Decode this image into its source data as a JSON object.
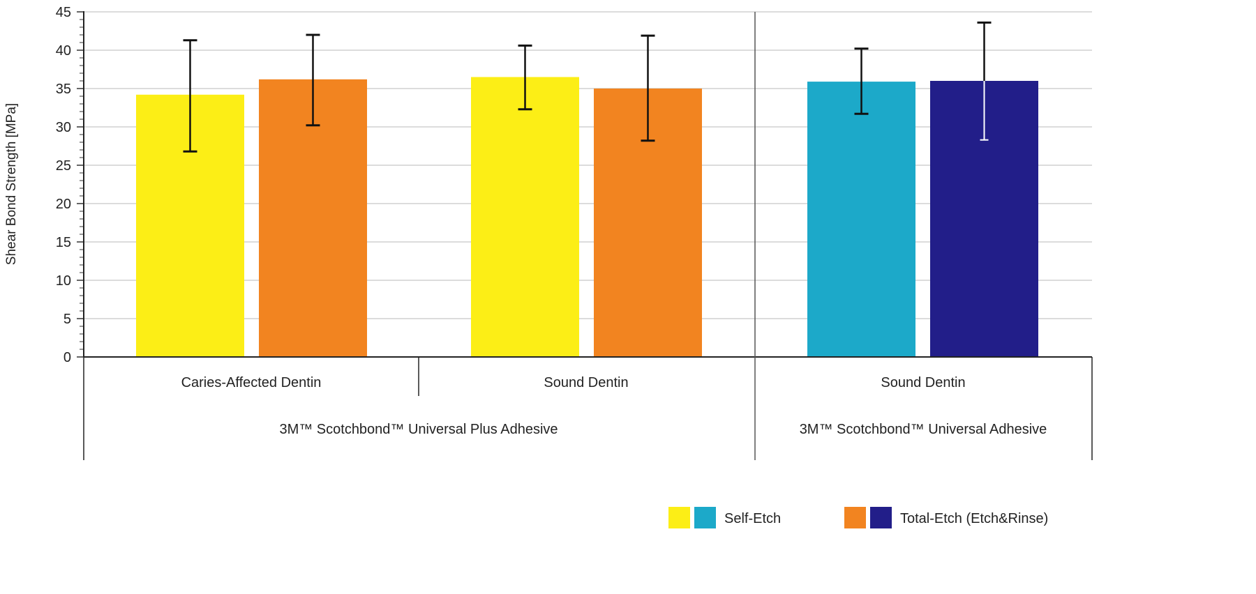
{
  "chart_data": {
    "type": "bar",
    "ylabel": "Shear Bond Strength [MPa]",
    "ylim": [
      0,
      45
    ],
    "yticks": [
      0,
      5,
      10,
      15,
      20,
      25,
      30,
      35,
      40,
      45
    ],
    "grid": true,
    "groups": [
      {
        "label": "Caries-Affected Dentin",
        "product": "3M™ Scotchbond™ Universal Plus Adhesive"
      },
      {
        "label": "Sound Dentin",
        "product": "3M™ Scotchbond™ Universal Plus Adhesive"
      },
      {
        "label": "Sound Dentin",
        "product": "3M™ Scotchbond™ Universal Adhesive"
      }
    ],
    "products": [
      "3M™ Scotchbond™ Universal Plus Adhesive",
      "3M™ Scotchbond™ Universal Adhesive"
    ],
    "bars": [
      {
        "group": 0,
        "series": "Self-Etch",
        "value": 34.2,
        "err_low": 26.8,
        "err_high": 41.3,
        "color": "#FCEE16"
      },
      {
        "group": 0,
        "series": "Total-Etch (Etch&Rinse)",
        "value": 36.2,
        "err_low": 30.2,
        "err_high": 42.0,
        "color": "#F28420"
      },
      {
        "group": 1,
        "series": "Self-Etch",
        "value": 36.5,
        "err_low": 32.3,
        "err_high": 40.6,
        "color": "#FCEE16"
      },
      {
        "group": 1,
        "series": "Total-Etch (Etch&Rinse)",
        "value": 35.0,
        "err_low": 28.2,
        "err_high": 41.9,
        "color": "#F28420"
      },
      {
        "group": 2,
        "series": "Self-Etch",
        "value": 35.9,
        "err_low": 31.7,
        "err_high": 40.2,
        "color": "#1CA9C9"
      },
      {
        "group": 2,
        "series": "Total-Etch (Etch&Rinse)",
        "value": 36.0,
        "err_low": 28.3,
        "err_high": 43.6,
        "color": "#221E89"
      }
    ],
    "legend": {
      "placement": "bottom-right",
      "entries": [
        {
          "label": "Self-Etch",
          "colors": [
            "#FCEE16",
            "#1CA9C9"
          ]
        },
        {
          "label": "Total-Etch (Etch&Rinse)",
          "colors": [
            "#F28420",
            "#221E89"
          ]
        }
      ]
    }
  }
}
